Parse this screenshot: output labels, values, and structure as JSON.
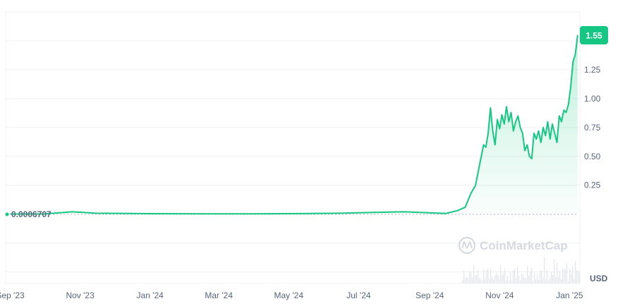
{
  "chart_data": {
    "type": "area",
    "currency_label": "USD",
    "watermark": "CoinMarketCap",
    "baseline_label": "0.0006707",
    "last_price_label": "1.55",
    "x_ticks": [
      "Sep '23",
      "Nov '23",
      "Jan '24",
      "Mar '24",
      "May '24",
      "Jul '24",
      "Sep '24",
      "Nov '24",
      "Jan '25"
    ],
    "y_ticks": [
      "0.25",
      "0.50",
      "0.75",
      "1.00",
      "1.25"
    ],
    "ylim": [
      -0.6,
      1.75
    ],
    "grid": true,
    "colors": {
      "line": "#16c784",
      "badge": "#16c784",
      "grid": "#eef0f3",
      "text": "#58667e",
      "volume": "#e2e5ea"
    },
    "series": [
      {
        "points": [
          [
            "2023-09-01",
            0.0007
          ],
          [
            "2023-10-01",
            0.002
          ],
          [
            "2023-10-25",
            0.02
          ],
          [
            "2023-11-15",
            0.008
          ],
          [
            "2024-01-01",
            0.004
          ],
          [
            "2024-02-15",
            0.003
          ],
          [
            "2024-04-01",
            0.003
          ],
          [
            "2024-05-15",
            0.005
          ],
          [
            "2024-06-15",
            0.008
          ],
          [
            "2024-07-15",
            0.015
          ],
          [
            "2024-08-10",
            0.02
          ],
          [
            "2024-09-05",
            0.01
          ],
          [
            "2024-09-15",
            0.006
          ],
          [
            "2024-09-25",
            0.03
          ],
          [
            "2024-10-02",
            0.06
          ],
          [
            "2024-10-07",
            0.18
          ],
          [
            "2024-10-11",
            0.25
          ],
          [
            "2024-10-15",
            0.45
          ],
          [
            "2024-10-18",
            0.6
          ],
          [
            "2024-10-20",
            0.58
          ],
          [
            "2024-10-22",
            0.7
          ],
          [
            "2024-10-24",
            0.92
          ],
          [
            "2024-10-26",
            0.72
          ],
          [
            "2024-10-28",
            0.6
          ],
          [
            "2024-10-30",
            0.82
          ],
          [
            "2024-11-01",
            0.74
          ],
          [
            "2024-11-03",
            0.86
          ],
          [
            "2024-11-05",
            0.78
          ],
          [
            "2024-11-07",
            0.93
          ],
          [
            "2024-11-09",
            0.8
          ],
          [
            "2024-11-11",
            0.88
          ],
          [
            "2024-11-13",
            0.72
          ],
          [
            "2024-11-15",
            0.8
          ],
          [
            "2024-11-17",
            0.85
          ],
          [
            "2024-11-19",
            0.75
          ],
          [
            "2024-11-21",
            0.7
          ],
          [
            "2024-11-23",
            0.55
          ],
          [
            "2024-11-25",
            0.6
          ],
          [
            "2024-11-27",
            0.5
          ],
          [
            "2024-11-29",
            0.48
          ],
          [
            "2024-12-01",
            0.7
          ],
          [
            "2024-12-03",
            0.65
          ],
          [
            "2024-12-05",
            0.72
          ],
          [
            "2024-12-07",
            0.62
          ],
          [
            "2024-12-09",
            0.75
          ],
          [
            "2024-12-11",
            0.68
          ],
          [
            "2024-12-13",
            0.8
          ],
          [
            "2024-12-15",
            0.65
          ],
          [
            "2024-12-17",
            0.78
          ],
          [
            "2024-12-19",
            0.7
          ],
          [
            "2024-12-21",
            0.62
          ],
          [
            "2024-12-23",
            0.85
          ],
          [
            "2024-12-25",
            0.8
          ],
          [
            "2024-12-27",
            0.9
          ],
          [
            "2024-12-29",
            0.88
          ],
          [
            "2024-12-31",
            0.95
          ],
          [
            "2025-01-02",
            1.1
          ],
          [
            "2025-01-04",
            1.32
          ],
          [
            "2025-01-06",
            1.38
          ],
          [
            "2025-01-08",
            1.55
          ]
        ]
      }
    ]
  }
}
